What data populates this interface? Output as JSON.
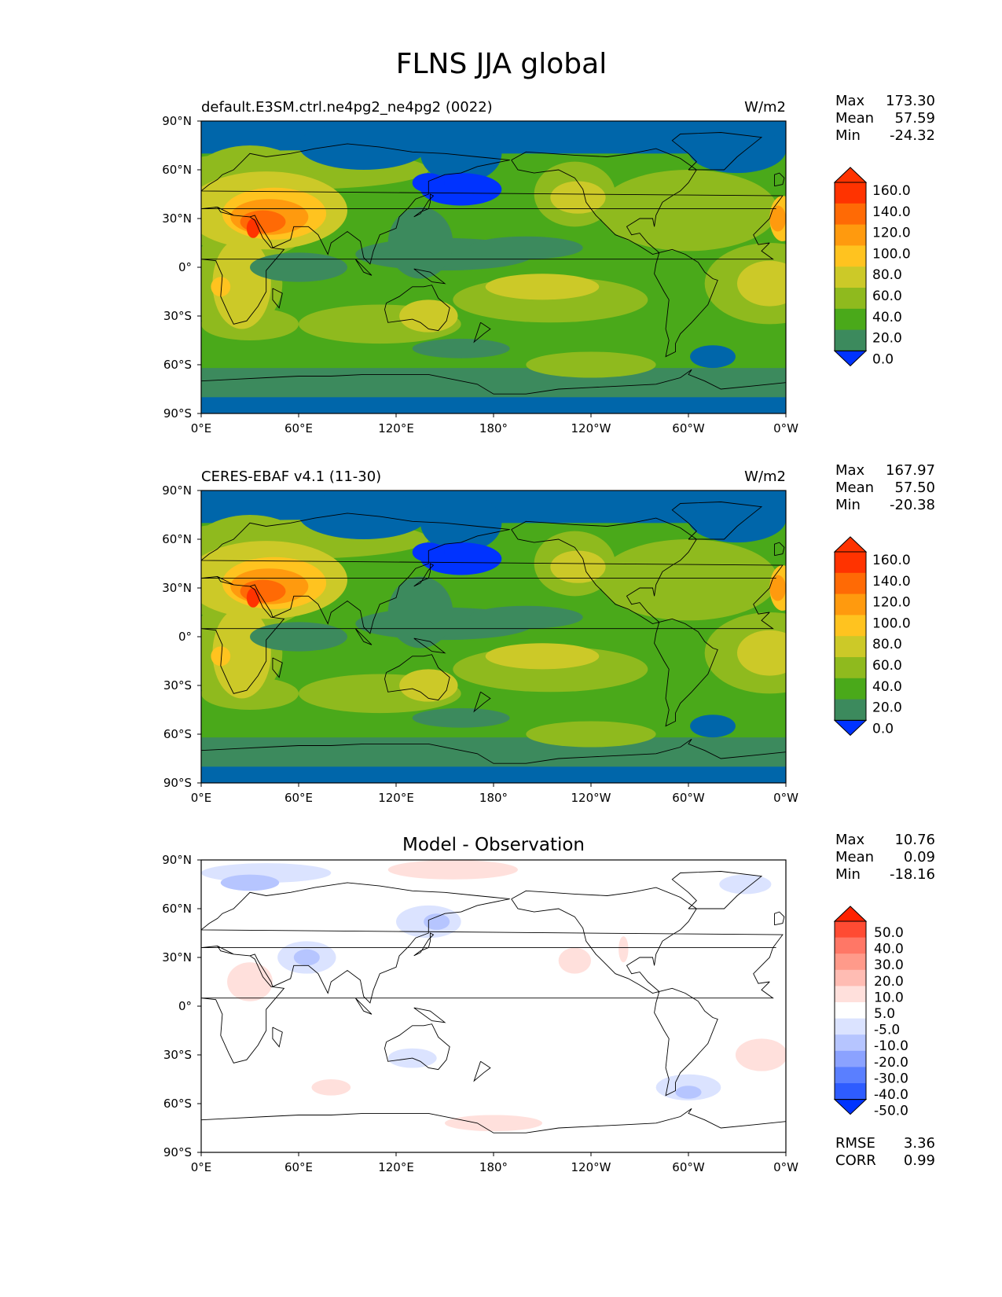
{
  "figure": {
    "title": "FLNS JJA global"
  },
  "colors": {
    "main_levels": [
      "#0033ff",
      "#0066aa",
      "#3c8a5d",
      "#4aa91a",
      "#8fba1e",
      "#ccc928",
      "#ffc31f",
      "#ff9a0e",
      "#ff6a05",
      "#ff3300"
    ],
    "diff_levels": [
      "#0033ff",
      "#2e5cff",
      "#5a7fff",
      "#8ba2ff",
      "#b6c5ff",
      "#dbe3ff",
      "#ffffff",
      "#ffe0dc",
      "#ffbcb3",
      "#ff9a8a",
      "#ff7766",
      "#ff4b33",
      "#ff2200"
    ],
    "coastline": "#000000"
  },
  "chart_data": [
    {
      "type": "heatmap",
      "subtitle_left": "default.E3SM.ctrl.ne4pg2_ne4pg2 (0022)",
      "units": "W/m2",
      "stats": [
        {
          "label": "Max",
          "value": "173.30"
        },
        {
          "label": "Mean",
          "value": "57.59"
        },
        {
          "label": "Min",
          "value": "-24.32"
        }
      ],
      "colorbar_ticks": [
        "160.0",
        "140.0",
        "120.0",
        "100.0",
        "80.0",
        "60.0",
        "40.0",
        "20.0",
        "0.0"
      ],
      "xticks": [
        "0°E",
        "60°E",
        "120°E",
        "180°",
        "120°W",
        "60°W",
        "0°W"
      ],
      "yticks": [
        "90°N",
        "60°N",
        "30°N",
        "0°",
        "30°S",
        "60°S",
        "90°S"
      ],
      "xlim": [
        0,
        360
      ],
      "ylim": [
        -90,
        90
      ]
    },
    {
      "type": "heatmap",
      "subtitle_left": "CERES-EBAF v4.1 (11-30)",
      "units": "W/m2",
      "stats": [
        {
          "label": "Max",
          "value": "167.97"
        },
        {
          "label": "Mean",
          "value": "57.50"
        },
        {
          "label": "Min",
          "value": "-20.38"
        }
      ],
      "colorbar_ticks": [
        "160.0",
        "140.0",
        "120.0",
        "100.0",
        "80.0",
        "60.0",
        "40.0",
        "20.0",
        "0.0"
      ],
      "xticks": [
        "0°E",
        "60°E",
        "120°E",
        "180°",
        "120°W",
        "60°W",
        "0°W"
      ],
      "yticks": [
        "90°N",
        "60°N",
        "30°N",
        "0°",
        "30°S",
        "60°S",
        "90°S"
      ],
      "xlim": [
        0,
        360
      ],
      "ylim": [
        -90,
        90
      ]
    },
    {
      "type": "heatmap",
      "title": "Model - Observation",
      "stats": [
        {
          "label": "Max",
          "value": "10.76"
        },
        {
          "label": "Mean",
          "value": "0.09"
        },
        {
          "label": "Min",
          "value": "-18.16"
        }
      ],
      "colorbar_ticks": [
        "50.0",
        "40.0",
        "30.0",
        "20.0",
        "10.0",
        "5.0",
        "-5.0",
        "-10.0",
        "-20.0",
        "-30.0",
        "-40.0",
        "-50.0"
      ],
      "footer_stats": [
        {
          "label": "RMSE",
          "value": "3.36"
        },
        {
          "label": "CORR",
          "value": "0.99"
        }
      ],
      "xticks": [
        "0°E",
        "60°E",
        "120°E",
        "180°",
        "120°W",
        "60°W",
        "0°W"
      ],
      "yticks": [
        "90°N",
        "60°N",
        "30°N",
        "0°",
        "30°S",
        "60°S",
        "90°S"
      ],
      "xlim": [
        0,
        360
      ],
      "ylim": [
        -90,
        90
      ]
    }
  ]
}
